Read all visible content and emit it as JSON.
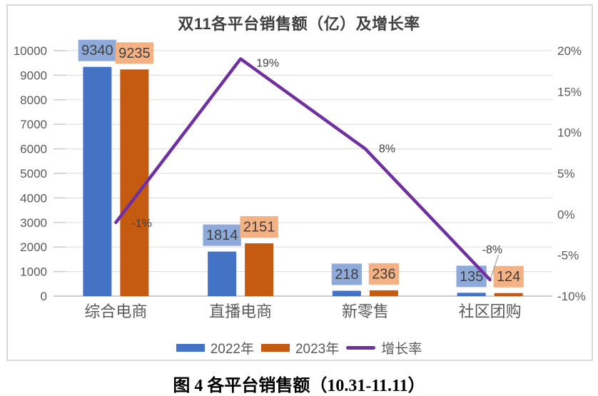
{
  "figure": {
    "caption": "图 4 各平台销售额（10.31-11.11）"
  },
  "chart_data": {
    "type": "bar",
    "subtype": "combo-bar-line",
    "title": "双11各平台销售额（亿）及增长率",
    "categories": [
      "综合电商",
      "直播电商",
      "新零售",
      "社区团购"
    ],
    "series": [
      {
        "name": "2022年",
        "type": "bar",
        "axis": "left",
        "color": "#4472C4",
        "label_bg": "#8EAADB",
        "values": [
          9340,
          1814,
          218,
          135
        ]
      },
      {
        "name": "2023年",
        "type": "bar",
        "axis": "left",
        "color": "#C55A11",
        "label_bg": "#F4B183",
        "values": [
          9235,
          2151,
          236,
          124
        ]
      },
      {
        "name": "增长率",
        "type": "line",
        "axis": "right",
        "color": "#7030A0",
        "values": [
          -1,
          19,
          8,
          -8
        ],
        "labels": [
          "-1%",
          "19%",
          "8%",
          "-8%"
        ]
      }
    ],
    "left_axis": {
      "min": 0,
      "max": 10000,
      "step": 1000,
      "tick_labels": [
        "0",
        "1000",
        "2000",
        "3000",
        "4000",
        "5000",
        "6000",
        "7000",
        "8000",
        "9000",
        "10000"
      ]
    },
    "right_axis": {
      "min": -10,
      "max": 20,
      "step": 5,
      "tick_labels": [
        "20%",
        "15%",
        "10%",
        "5%",
        "0%",
        "-5%",
        "-10%"
      ]
    },
    "legend": {
      "position": "bottom",
      "entries": [
        "2022年",
        "2023年",
        "增长率"
      ]
    },
    "grid": true,
    "colors": {
      "gridline": "#E0E0E0",
      "axis_line": "#BFBFBF",
      "tick": "#C8C8C8",
      "axis_text": "#595959",
      "category_text": "#595959",
      "data_label_text": "#404040",
      "line_label_text": "#404040",
      "title_text": "#404040",
      "legend_text": "#595959",
      "leader_line": "#A6A6A6",
      "caption_text": "#000000",
      "frame_border": "#D9D9D9"
    }
  }
}
